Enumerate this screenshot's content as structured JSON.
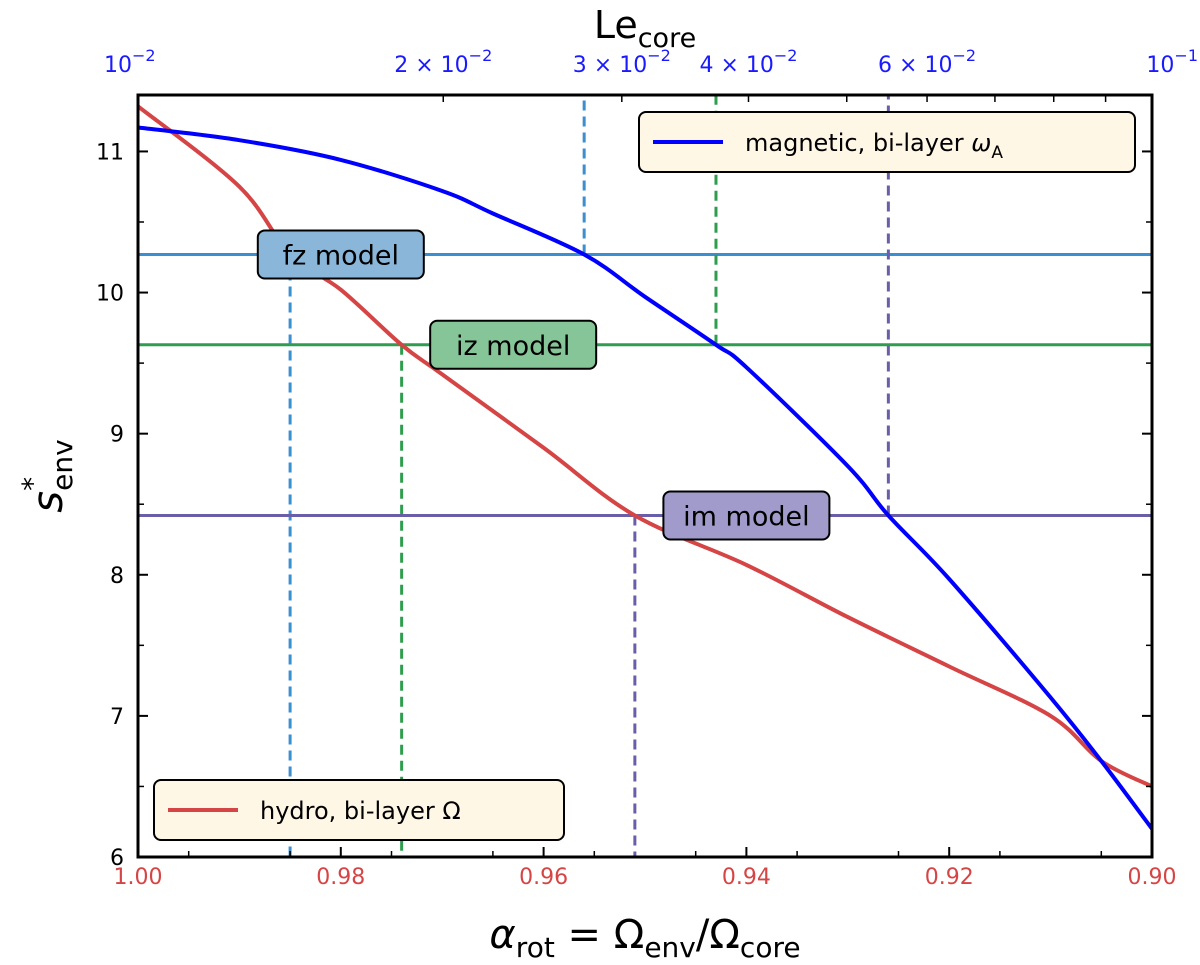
{
  "chart_data": {
    "type": "line",
    "title": "",
    "xlabel_bottom": {
      "main": "α",
      "main_sub": "rot",
      "eq": " = Ω",
      "eq_sub": "env",
      "slash": "/Ω",
      "slash_sub": "core"
    },
    "xlabel_top": {
      "main": "Le",
      "sub": "core"
    },
    "ylabel": {
      "main": "s",
      "sup": "*",
      "sub": "env"
    },
    "x_bottom_range": [
      1.0,
      0.9
    ],
    "x_bottom_reversed": true,
    "x_bottom_ticks": [
      "1.00",
      "0.98",
      "0.96",
      "0.94",
      "0.92",
      "0.90"
    ],
    "x_bottom_tick_values": [
      1.0,
      0.98,
      0.96,
      0.94,
      0.92,
      0.9
    ],
    "x_top_scale": "log",
    "x_top_range": [
      0.01,
      0.1
    ],
    "x_top_ticks": [
      {
        "value": 0.01,
        "mant": "10",
        "exp": "−2"
      },
      {
        "value": 0.02,
        "pre": "2 × ",
        "mant": "10",
        "exp": "−2"
      },
      {
        "value": 0.03,
        "pre": "3 × ",
        "mant": "10",
        "exp": "−2"
      },
      {
        "value": 0.04,
        "pre": "4 × ",
        "mant": "10",
        "exp": "−2"
      },
      {
        "value": 0.06,
        "pre": "6 × ",
        "mant": "10",
        "exp": "−2"
      },
      {
        "value": 0.1,
        "mant": "10",
        "exp": "−1"
      }
    ],
    "ylim": [
      6,
      11.4
    ],
    "y_ticks": [
      "6",
      "7",
      "8",
      "9",
      "10",
      "11"
    ],
    "y_tick_values": [
      6,
      7,
      8,
      9,
      10,
      11
    ],
    "series": [
      {
        "name": "hydro, bi-layer Ω",
        "color": "#d64545",
        "x": [
          1.0,
          0.99,
          0.985,
          0.98,
          0.974,
          0.97,
          0.96,
          0.951,
          0.94,
          0.93,
          0.92,
          0.91,
          0.905,
          0.9
        ],
        "y": [
          11.32,
          10.75,
          10.27,
          10.02,
          9.63,
          9.42,
          8.9,
          8.42,
          8.07,
          7.7,
          7.35,
          7.0,
          6.68,
          6.5
        ]
      },
      {
        "name": "magnetic, bi-layer ω",
        "name_sub": "A",
        "color": "#0000ff",
        "x": [
          1.0,
          0.99,
          0.98,
          0.97,
          0.965,
          0.956,
          0.95,
          0.943,
          0.94,
          0.93,
          0.926,
          0.92,
          0.91,
          0.905,
          0.9
        ],
        "y": [
          11.17,
          11.08,
          10.94,
          10.72,
          10.56,
          10.27,
          9.97,
          9.63,
          9.47,
          8.77,
          8.42,
          7.97,
          7.13,
          6.68,
          6.2
        ]
      }
    ],
    "models": [
      {
        "label": "fz model",
        "y": 10.27,
        "color": "#3a8fd0",
        "box": "#8ab7d9",
        "x_hydro": 0.985,
        "x_magnetic": 0.956,
        "label_x": 0.98
      },
      {
        "label": "iz model",
        "y": 9.63,
        "color": "#2e9e4e",
        "box": "#86c597",
        "x_hydro": 0.974,
        "x_magnetic": 0.943,
        "label_x": 0.963
      },
      {
        "label": "im model",
        "y": 8.42,
        "color": "#6b5ea8",
        "box": "#a09bcb",
        "x_hydro": 0.951,
        "x_magnetic": 0.926,
        "label_x": 0.94
      }
    ],
    "legend": [
      {
        "series": 1,
        "placement": "top-right"
      },
      {
        "series": 0,
        "placement": "bottom-left"
      }
    ],
    "grid": false
  }
}
